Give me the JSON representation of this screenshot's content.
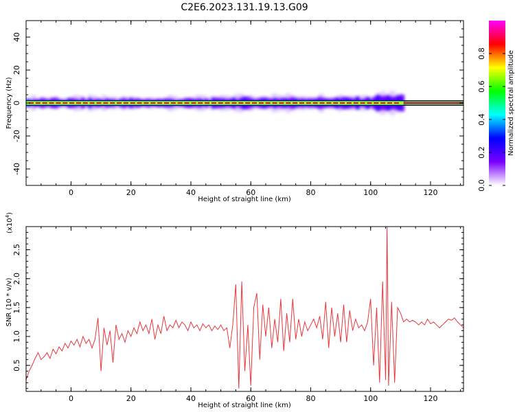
{
  "title": "C2E6.2023.131.19.13.G09",
  "chart_data": [
    {
      "type": "heatmap",
      "xlabel": "Height of straight line (km)",
      "ylabel": "Frequency (Hz)",
      "xlim": [
        -15,
        131
      ],
      "ylim": [
        -50,
        50
      ],
      "xticks": [
        0,
        20,
        40,
        60,
        80,
        100,
        120
      ],
      "yticks": [
        -40,
        -20,
        0,
        20,
        40
      ],
      "ytick_labels": [
        "-40",
        "-20",
        "0",
        "20",
        "40"
      ],
      "ridge_frequency": 0,
      "ridge_end_x": 111,
      "fit_line_frequency": 0,
      "colorbar": {
        "label": "Normalized spectral amplitude",
        "ticks": [
          0.0,
          0.2,
          0.4,
          0.6,
          0.8
        ],
        "tick_labels": [
          "0.0",
          "0.2",
          "0.4",
          "0.6",
          "0.8"
        ],
        "range": [
          0,
          1
        ],
        "colors": [
          "#ffffff",
          "#7a00ff",
          "#0000ff",
          "#00ffff",
          "#00ff00",
          "#ffff00",
          "#ff0000",
          "#ff00ff"
        ]
      }
    },
    {
      "type": "line",
      "xlabel": "Height of straight line (km)",
      "ylabel": "SNR (10 * v/v)",
      "multiplier_label": "(x10",
      "multiplier_exp": "4",
      "xlim": [
        -15,
        131
      ],
      "ylim": [
        0.05,
        2.9
      ],
      "xticks": [
        0,
        20,
        40,
        60,
        80,
        100,
        120
      ],
      "yticks": [
        0.5,
        1.0,
        1.5,
        2.0,
        2.5
      ],
      "ytick_labels": [
        "0.5",
        "1.0",
        "1.5",
        "2.0",
        "2.5"
      ],
      "color": "#e8363a",
      "series": [
        {
          "values": [
            [
              -15,
              0.25
            ],
            [
              -14,
              0.4
            ],
            [
              -13,
              0.5
            ],
            [
              -12,
              0.62
            ],
            [
              -11,
              0.72
            ],
            [
              -10,
              0.6
            ],
            [
              -9,
              0.65
            ],
            [
              -8,
              0.72
            ],
            [
              -7,
              0.62
            ],
            [
              -6,
              0.78
            ],
            [
              -5,
              0.7
            ],
            [
              -4,
              0.82
            ],
            [
              -3,
              0.75
            ],
            [
              -2,
              0.88
            ],
            [
              -1,
              0.8
            ],
            [
              0,
              0.92
            ],
            [
              1,
              0.85
            ],
            [
              2,
              0.95
            ],
            [
              3,
              0.82
            ],
            [
              4,
              1.0
            ],
            [
              5,
              0.88
            ],
            [
              6,
              0.95
            ],
            [
              7,
              0.8
            ],
            [
              8,
              0.95
            ],
            [
              9,
              1.32
            ],
            [
              10,
              0.4
            ],
            [
              11,
              1.15
            ],
            [
              12,
              0.85
            ],
            [
              13,
              1.1
            ],
            [
              14,
              0.55
            ],
            [
              15,
              1.2
            ],
            [
              16,
              0.95
            ],
            [
              17,
              1.05
            ],
            [
              18,
              0.9
            ],
            [
              19,
              1.1
            ],
            [
              20,
              1.0
            ],
            [
              21,
              1.15
            ],
            [
              22,
              1.05
            ],
            [
              23,
              1.25
            ],
            [
              24,
              1.1
            ],
            [
              25,
              1.2
            ],
            [
              26,
              1.05
            ],
            [
              27,
              1.3
            ],
            [
              28,
              0.95
            ],
            [
              29,
              1.2
            ],
            [
              30,
              1.05
            ],
            [
              31,
              1.35
            ],
            [
              32,
              1.1
            ],
            [
              33,
              1.2
            ],
            [
              34,
              1.15
            ],
            [
              35,
              1.28
            ],
            [
              36,
              1.15
            ],
            [
              37,
              1.25
            ],
            [
              38,
              1.2
            ],
            [
              39,
              1.1
            ],
            [
              40,
              1.25
            ],
            [
              41,
              1.15
            ],
            [
              42,
              1.2
            ],
            [
              43,
              1.1
            ],
            [
              44,
              1.22
            ],
            [
              45,
              1.15
            ],
            [
              46,
              1.2
            ],
            [
              47,
              1.1
            ],
            [
              48,
              1.18
            ],
            [
              49,
              1.12
            ],
            [
              50,
              1.2
            ],
            [
              51,
              1.1
            ],
            [
              52,
              1.15
            ],
            [
              53,
              0.8
            ],
            [
              54,
              1.2
            ],
            [
              55,
              1.9
            ],
            [
              56,
              0.1
            ],
            [
              57,
              1.95
            ],
            [
              58,
              0.4
            ],
            [
              59,
              1.2
            ],
            [
              60,
              0.15
            ],
            [
              61,
              1.5
            ],
            [
              62,
              1.75
            ],
            [
              63,
              0.6
            ],
            [
              64,
              1.55
            ],
            [
              65,
              1.0
            ],
            [
              66,
              1.5
            ],
            [
              67,
              0.8
            ],
            [
              68,
              1.3
            ],
            [
              69,
              0.9
            ],
            [
              70,
              1.65
            ],
            [
              71,
              0.75
            ],
            [
              72,
              1.4
            ],
            [
              73,
              0.9
            ],
            [
              74,
              1.65
            ],
            [
              75,
              0.95
            ],
            [
              76,
              1.3
            ],
            [
              77,
              1.0
            ],
            [
              78,
              1.25
            ],
            [
              79,
              1.1
            ],
            [
              80,
              1.2
            ],
            [
              81,
              1.3
            ],
            [
              82,
              1.15
            ],
            [
              83,
              1.35
            ],
            [
              84,
              0.95
            ],
            [
              85,
              1.6
            ],
            [
              86,
              0.8
            ],
            [
              87,
              1.5
            ],
            [
              88,
              1.0
            ],
            [
              89,
              1.4
            ],
            [
              90,
              0.9
            ],
            [
              91,
              1.55
            ],
            [
              92,
              0.9
            ],
            [
              93,
              1.45
            ],
            [
              94,
              1.1
            ],
            [
              95,
              1.3
            ],
            [
              96,
              1.15
            ],
            [
              97,
              1.2
            ],
            [
              98,
              1.1
            ],
            [
              99,
              1.25
            ],
            [
              100,
              1.65
            ],
            [
              101,
              0.5
            ],
            [
              102,
              1.5
            ],
            [
              103,
              0.2
            ],
            [
              104,
              1.95
            ],
            [
              105,
              0.25
            ],
            [
              105.5,
              2.9
            ],
            [
              106,
              0.15
            ],
            [
              107,
              1.6
            ],
            [
              108,
              0.2
            ],
            [
              109,
              1.5
            ],
            [
              110,
              1.4
            ],
            [
              111,
              1.25
            ],
            [
              112,
              1.3
            ],
            [
              113,
              1.25
            ],
            [
              114,
              1.28
            ],
            [
              115,
              1.25
            ],
            [
              116,
              1.2
            ],
            [
              117,
              1.25
            ],
            [
              118,
              1.2
            ],
            [
              119,
              1.3
            ],
            [
              120,
              1.22
            ],
            [
              121,
              1.25
            ],
            [
              122,
              1.2
            ],
            [
              123,
              1.15
            ],
            [
              124,
              1.2
            ],
            [
              125,
              1.25
            ],
            [
              126,
              1.3
            ],
            [
              127,
              1.28
            ],
            [
              128,
              1.32
            ],
            [
              129,
              1.25
            ],
            [
              130,
              1.2
            ],
            [
              131,
              1.15
            ]
          ]
        }
      ]
    }
  ]
}
